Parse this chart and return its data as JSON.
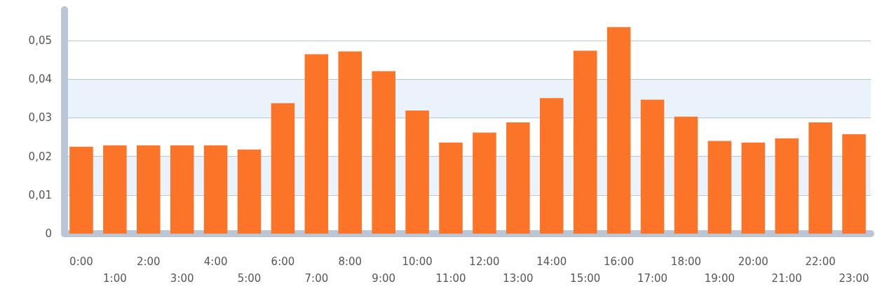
{
  "chart_data": {
    "type": "bar",
    "categories": [
      "0:00",
      "1:00",
      "2:00",
      "3:00",
      "4:00",
      "5:00",
      "6:00",
      "7:00",
      "8:00",
      "9:00",
      "10:00",
      "11:00",
      "12:00",
      "13:00",
      "14:00",
      "15:00",
      "16:00",
      "17:00",
      "18:00",
      "19:00",
      "20:00",
      "21:00",
      "22:00",
      "23:00"
    ],
    "values": [
      0.0225,
      0.0229,
      0.0229,
      0.0229,
      0.0229,
      0.0218,
      0.0338,
      0.0465,
      0.0472,
      0.0421,
      0.0319,
      0.0236,
      0.0262,
      0.0288,
      0.0351,
      0.0474,
      0.0535,
      0.0347,
      0.0303,
      0.024,
      0.0236,
      0.0247,
      0.0288,
      0.0258
    ],
    "color": "#fb7428",
    "ylim": [
      0,
      0.058
    ],
    "yticks": [
      0,
      {
        "value": 0.01,
        "label": "0,01"
      },
      {
        "value": 0.02,
        "label": "0,02"
      },
      {
        "value": 0.03,
        "label": "0,03"
      },
      {
        "value": 0.04,
        "label": "0,04"
      },
      {
        "value": 0.05,
        "label": "0,05"
      }
    ],
    "grid": "y"
  }
}
